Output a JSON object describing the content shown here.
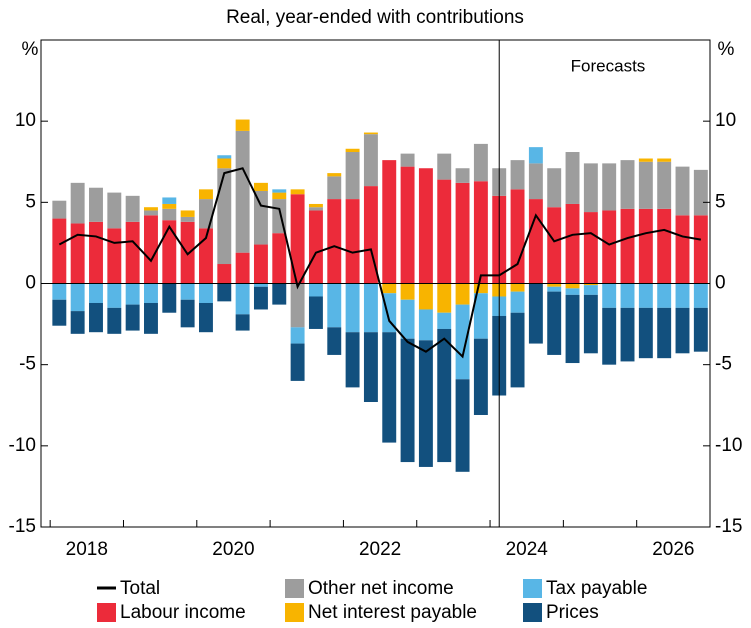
{
  "chart_data": {
    "type": "bar",
    "stacked": true,
    "subtitle": "Real, year-ended with contributions",
    "y_unit": "%",
    "annotation": "Forecasts",
    "forecast_from_index": 25,
    "categories": [
      null,
      null,
      null,
      null,
      null,
      null,
      null,
      null,
      null,
      null,
      null,
      null,
      null,
      null,
      null,
      null,
      null,
      null,
      null,
      null,
      null,
      null,
      null,
      null,
      null,
      null,
      null,
      null,
      null,
      null,
      null,
      null,
      null,
      null,
      null,
      null
    ],
    "series": [
      {
        "name": "Total",
        "type": "line",
        "color": "#000000",
        "values": [
          2.4,
          3.0,
          2.9,
          2.5,
          2.6,
          1.4,
          3.5,
          1.8,
          2.8,
          6.8,
          7.1,
          4.8,
          4.6,
          -0.2,
          1.9,
          2.3,
          1.9,
          2.1,
          -2.3,
          -3.6,
          -4.2,
          -3.4,
          -4.5,
          0.5,
          0.5,
          1.2,
          4.2,
          2.6,
          3.0,
          3.1,
          2.4,
          2.8,
          3.1,
          3.3,
          2.9,
          2.7
        ]
      },
      {
        "name": "Labour income",
        "color": "#ec2b3a",
        "values": [
          4.0,
          3.7,
          3.8,
          3.4,
          3.8,
          4.2,
          3.9,
          3.8,
          3.4,
          1.2,
          1.9,
          2.4,
          3.1,
          5.5,
          4.5,
          5.2,
          5.2,
          6.0,
          7.6,
          7.2,
          7.1,
          6.4,
          6.2,
          6.3,
          5.4,
          5.8,
          5.2,
          4.7,
          4.9,
          4.4,
          4.5,
          4.6,
          4.6,
          4.6,
          4.2,
          4.2
        ]
      },
      {
        "name": "Other net income",
        "color": "#9d9d9d",
        "values": [
          1.1,
          2.5,
          2.1,
          2.2,
          1.6,
          0.3,
          0.7,
          0.3,
          1.8,
          5.9,
          7.5,
          3.3,
          2.1,
          -2.7,
          0.2,
          1.4,
          2.9,
          3.2,
          0,
          0.8,
          0,
          1.6,
          0.9,
          2.3,
          1.7,
          1.8,
          2.2,
          2.4,
          3.2,
          3.0,
          2.9,
          3.0,
          2.9,
          2.9,
          3.0,
          2.8
        ]
      },
      {
        "name": "Net interest payable",
        "color": "#f8b400",
        "values": [
          0,
          0,
          0,
          0,
          0,
          0.2,
          0.3,
          0.4,
          0.6,
          0.6,
          0.7,
          0.5,
          0.4,
          0.3,
          0.2,
          0.2,
          0.2,
          0.1,
          -0.6,
          -1.0,
          -1.6,
          -1.8,
          -1.3,
          -0.6,
          -0.8,
          -0.5,
          0,
          -0.2,
          -0.3,
          -0.1,
          0,
          0,
          0.2,
          0.2,
          0,
          0
        ]
      },
      {
        "name": "Tax payable",
        "color": "#58b6e6",
        "values": [
          -1.0,
          -1.7,
          -1.2,
          -1.5,
          -1.3,
          -1.2,
          0.4,
          -1.0,
          -1.2,
          0.2,
          -1.9,
          -0.2,
          0.2,
          -1.0,
          -0.8,
          -2.7,
          -3.0,
          -3.0,
          -2.4,
          -2.4,
          -1.9,
          -1.0,
          -4.6,
          -2.8,
          -1.2,
          -1.3,
          1.0,
          -0.3,
          -0.4,
          -0.6,
          -1.5,
          -1.5,
          -1.5,
          -1.5,
          -1.5,
          -1.5
        ]
      },
      {
        "name": "Prices",
        "color": "#12507e",
        "values": [
          -1.6,
          -1.4,
          -1.8,
          -1.6,
          -1.6,
          -1.9,
          -1.8,
          -1.7,
          -1.8,
          -1.1,
          -1.0,
          -1.4,
          -1.3,
          -2.3,
          -2.0,
          -1.7,
          -3.4,
          -4.3,
          -6.8,
          -7.6,
          -7.8,
          -8.2,
          -5.7,
          -4.7,
          -4.9,
          -4.6,
          -3.7,
          -3.9,
          -4.2,
          -3.6,
          -3.5,
          -3.3,
          -3.1,
          -3.1,
          -2.8,
          -2.7
        ]
      }
    ],
    "xlim": [
      2017.875,
      2027
    ],
    "xticks": [
      2018,
      2020,
      2022,
      2024,
      2026
    ],
    "ylim": [
      -15,
      15
    ],
    "yticks": [
      -15,
      -10,
      -5,
      0,
      5,
      10
    ],
    "grid": false
  }
}
